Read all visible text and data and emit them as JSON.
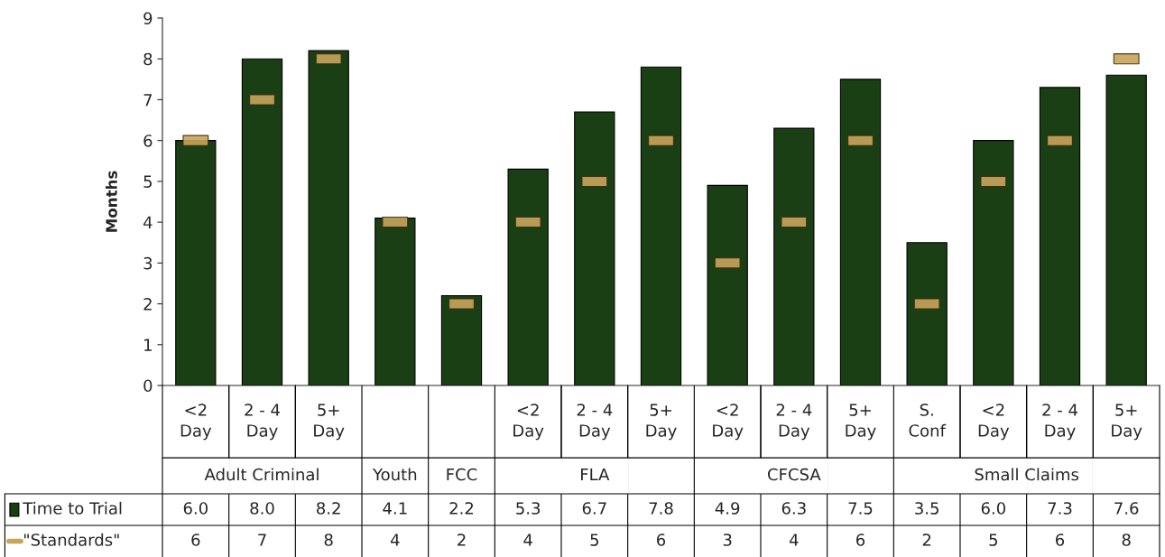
{
  "chart_data": {
    "type": "bar",
    "ylabel": "Months",
    "ylim": [
      0,
      9
    ],
    "yticks": [
      0,
      1,
      2,
      3,
      4,
      5,
      6,
      7,
      8,
      9
    ],
    "grid": false,
    "legend": "bottom left",
    "categories": [
      "<2\nDay",
      "2 - 4\nDay",
      "5+\nDay",
      null,
      null,
      "<2\nDay",
      "2 - 4\nDay",
      "5+\nDay",
      "<2\nDay",
      "2 - 4\nDay",
      "5+\nDay",
      "S.\nConf",
      "<2\nDay",
      "2 - 4\nDay",
      "5+\nDay"
    ],
    "annotations": [
      "Adult Criminal",
      "Youth",
      "FCC",
      "FLA",
      "CFCSA",
      "Small Claims"
    ],
    "series": [
      {
        "name": "Time to Trial",
        "color": "#1b3f14",
        "values": [
          6.0,
          8.0,
          8.2,
          4.1,
          2.2,
          5.3,
          6.7,
          7.8,
          4.9,
          6.3,
          7.5,
          3.5,
          6.0,
          7.3,
          7.6
        ],
        "value_labels": [
          "6.0",
          "8.0",
          "8.2",
          "4.1",
          "2.2",
          "5.3",
          "6.7",
          "7.8",
          "4.9",
          "6.3",
          "7.5",
          "3.5",
          "6.0",
          "7.3",
          "7.6"
        ]
      },
      {
        "name": "\"Standards\"",
        "type": "scatter",
        "color": "#c9a45a",
        "values": [
          6,
          7,
          8,
          4,
          2,
          4,
          5,
          6,
          3,
          4,
          6,
          2,
          5,
          6,
          8
        ],
        "value_labels": [
          "6",
          "7",
          "8",
          "4",
          "2",
          "4",
          "5",
          "6",
          "3",
          "4",
          "6",
          "2",
          "5",
          "6",
          "8"
        ]
      }
    ]
  }
}
